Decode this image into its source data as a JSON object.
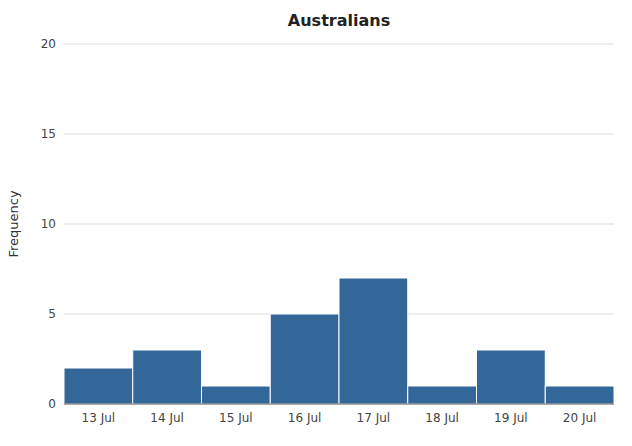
{
  "chart_data": {
    "type": "bar",
    "title": "Australians",
    "ylabel": "Frequency",
    "categories": [
      "13 Jul",
      "14 Jul",
      "15 Jul",
      "16 Jul",
      "17 Jul",
      "18 Jul",
      "19 Jul",
      "20 Jul"
    ],
    "values": [
      2,
      3,
      1,
      5,
      7,
      1,
      3,
      1
    ],
    "color": "#336699",
    "ylim": [
      0,
      20
    ],
    "yticks": [
      0,
      5,
      10,
      15,
      20
    ],
    "grid": true
  }
}
